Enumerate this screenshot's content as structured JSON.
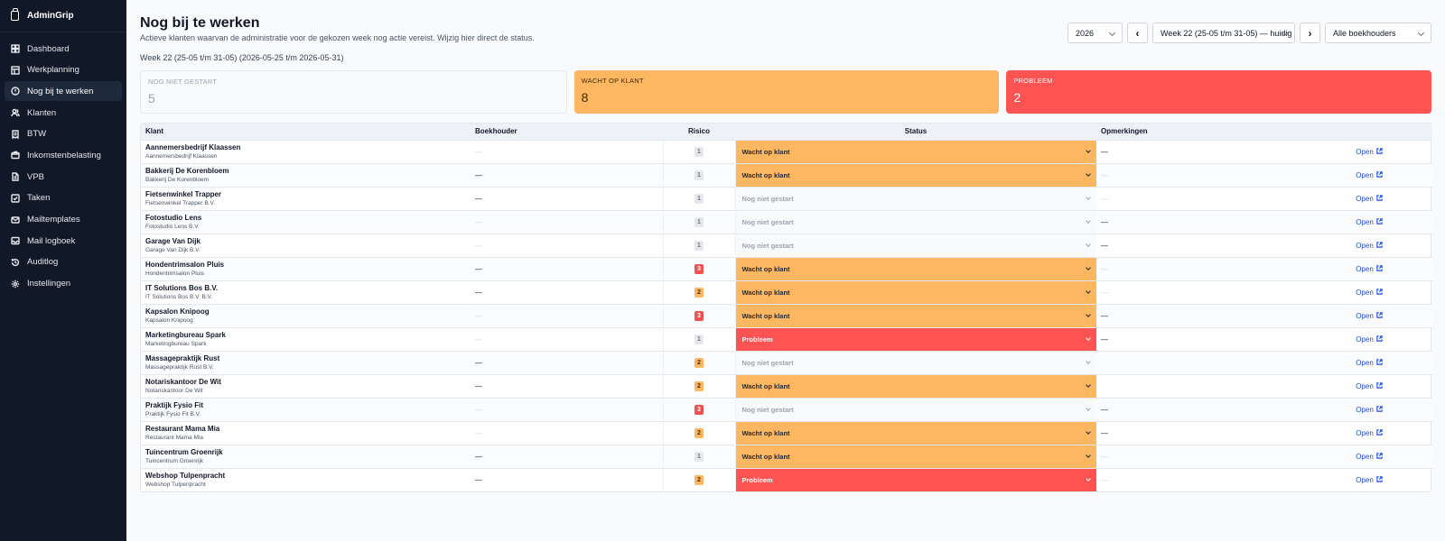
{
  "app": {
    "name": "AdminGrip"
  },
  "sidebar": {
    "items": [
      {
        "label": "Dashboard",
        "icon": "dashboard-icon",
        "active": false
      },
      {
        "label": "Werkplanning",
        "icon": "table-icon",
        "active": false
      },
      {
        "label": "Nog bij te werken",
        "icon": "alert-circle-icon",
        "active": true
      },
      {
        "label": "Klanten",
        "icon": "users-icon",
        "active": false
      },
      {
        "label": "BTW",
        "icon": "receipt-icon",
        "active": false
      },
      {
        "label": "Inkomstenbelasting",
        "icon": "wallet-icon",
        "active": false
      },
      {
        "label": "VPB",
        "icon": "file-icon",
        "active": false
      },
      {
        "label": "Taken",
        "icon": "checkbox-icon",
        "active": false
      },
      {
        "label": "Mailtemplates",
        "icon": "mail-icon",
        "active": false
      },
      {
        "label": "Mail logboek",
        "icon": "inbox-icon",
        "active": false
      },
      {
        "label": "Auditlog",
        "icon": "history-icon",
        "active": false
      },
      {
        "label": "Instellingen",
        "icon": "gear-icon",
        "active": false
      }
    ]
  },
  "header": {
    "title": "Nog bij te werken",
    "subtitle": "Actieve klanten waarvan de administratie voor de gekozen week nog actie vereist. Wijzig hier direct de status.",
    "week_line": "Week 22 (25-05 t/m 31-05) (2026-05-25 t/m 2026-05-31)"
  },
  "controls": {
    "year": "2026",
    "week": "Week 22 (25-05 t/m 31-05) — huidig",
    "bookkeeper": "Alle boekhouders"
  },
  "cards": [
    {
      "label": "NOG NIET GESTART",
      "value": "5"
    },
    {
      "label": "WACHT OP KLANT",
      "value": "8"
    },
    {
      "label": "PROBLEEM",
      "value": "2"
    }
  ],
  "table": {
    "headers": [
      "Klant",
      "Boekhouder",
      "Risico",
      "Status",
      "Opmerkingen",
      ""
    ],
    "open_label": "Open",
    "rows": [
      {
        "name": "Aannemersbedrijf Klaassen",
        "sub": "Aannemersbedrijf Klaassen",
        "bookkeeper": "—",
        "bk_light": true,
        "risk": "1",
        "risk_level": "low",
        "status": "Wacht op klant",
        "status_type": "wok",
        "remark": "—",
        "rm_light": false
      },
      {
        "name": "Bakkerij De Korenbloem",
        "sub": "Bakkerij De Korenbloem",
        "bookkeeper": "—",
        "bk_light": false,
        "risk": "1",
        "risk_level": "low",
        "status": "Wacht op klant",
        "status_type": "wok",
        "remark": "—",
        "rm_light": true
      },
      {
        "name": "Fietsenwinkel Trapper",
        "sub": "Fietsenwinkel Trapper B.V.",
        "bookkeeper": "—",
        "bk_light": false,
        "risk": "1",
        "risk_level": "low",
        "status": "Nog niet gestart",
        "status_type": "ngs",
        "remark": "—",
        "rm_light": true
      },
      {
        "name": "Fotostudio Lens",
        "sub": "Fotostudio Lens B.V.",
        "bookkeeper": "—",
        "bk_light": true,
        "risk": "1",
        "risk_level": "low",
        "status": "Nog niet gestart",
        "status_type": "ngs",
        "remark": "—",
        "rm_light": false
      },
      {
        "name": "Garage Van Dijk",
        "sub": "Garage Van Dijk B.V.",
        "bookkeeper": "—",
        "bk_light": true,
        "risk": "1",
        "risk_level": "low",
        "status": "Nog niet gestart",
        "status_type": "ngs",
        "remark": "—",
        "rm_light": false
      },
      {
        "name": "Hondentrimsalon Pluis",
        "sub": "Hondentrimsalon Pluis",
        "bookkeeper": "—",
        "bk_light": false,
        "risk": "3",
        "risk_level": "high",
        "status": "Wacht op klant",
        "status_type": "wok",
        "remark": "—",
        "rm_light": true
      },
      {
        "name": "IT Solutions Bos B.V.",
        "sub": "IT Solutions Bos B.V. B.V.",
        "bookkeeper": "—",
        "bk_light": false,
        "risk": "2",
        "risk_level": "mid",
        "status": "Wacht op klant",
        "status_type": "wok",
        "remark": "—",
        "rm_light": true
      },
      {
        "name": "Kapsalon Knipoog",
        "sub": "Kapsalon Knipoog",
        "bookkeeper": "—",
        "bk_light": true,
        "risk": "3",
        "risk_level": "high",
        "status": "Wacht op klant",
        "status_type": "wok",
        "remark": "—",
        "rm_light": false
      },
      {
        "name": "Marketingbureau Spark",
        "sub": "Marketingbureau Spark",
        "bookkeeper": "—",
        "bk_light": true,
        "risk": "1",
        "risk_level": "low",
        "status": "Probleem",
        "status_type": "prob",
        "remark": "—",
        "rm_light": false
      },
      {
        "name": "Massagepraktijk Rust",
        "sub": "Massagepraktijk Rust B.V.",
        "bookkeeper": "—",
        "bk_light": false,
        "risk": "2",
        "risk_level": "mid",
        "status": "Nog niet gestart",
        "status_type": "ngs",
        "remark": "",
        "rm_light": true
      },
      {
        "name": "Notariskantoor De Wit",
        "sub": "Notariskantoor De Wit",
        "bookkeeper": "—",
        "bk_light": false,
        "risk": "2",
        "risk_level": "mid",
        "status": "Wacht op klant",
        "status_type": "wok",
        "remark": "",
        "rm_light": true
      },
      {
        "name": "Praktijk Fysio Fit",
        "sub": "Praktijk Fysio Fit B.V.",
        "bookkeeper": "—",
        "bk_light": true,
        "risk": "3",
        "risk_level": "high",
        "status": "Nog niet gestart",
        "status_type": "ngs",
        "remark": "—",
        "rm_light": false
      },
      {
        "name": "Restaurant Mama Mia",
        "sub": "Restaurant Mama Mia",
        "bookkeeper": "—",
        "bk_light": true,
        "risk": "2",
        "risk_level": "mid",
        "status": "Wacht op klant",
        "status_type": "wok",
        "remark": "—",
        "rm_light": false
      },
      {
        "name": "Tuincentrum Groenrijk",
        "sub": "Tuincentrum Groenrijk",
        "bookkeeper": "—",
        "bk_light": false,
        "risk": "1",
        "risk_level": "low",
        "status": "Wacht op klant",
        "status_type": "wok",
        "remark": "—",
        "rm_light": true
      },
      {
        "name": "Webshop Tulpenpracht",
        "sub": "Webshop Tulpenpracht",
        "bookkeeper": "—",
        "bk_light": false,
        "risk": "2",
        "risk_level": "mid",
        "status": "Probleem",
        "status_type": "prob",
        "remark": "—",
        "rm_light": true
      }
    ]
  },
  "colors": {
    "sidebar_bg": "#111827",
    "waiting": "#fdb761",
    "problem": "#fe5353",
    "not_started": "#f9fafb",
    "link": "#1d4ed8"
  }
}
